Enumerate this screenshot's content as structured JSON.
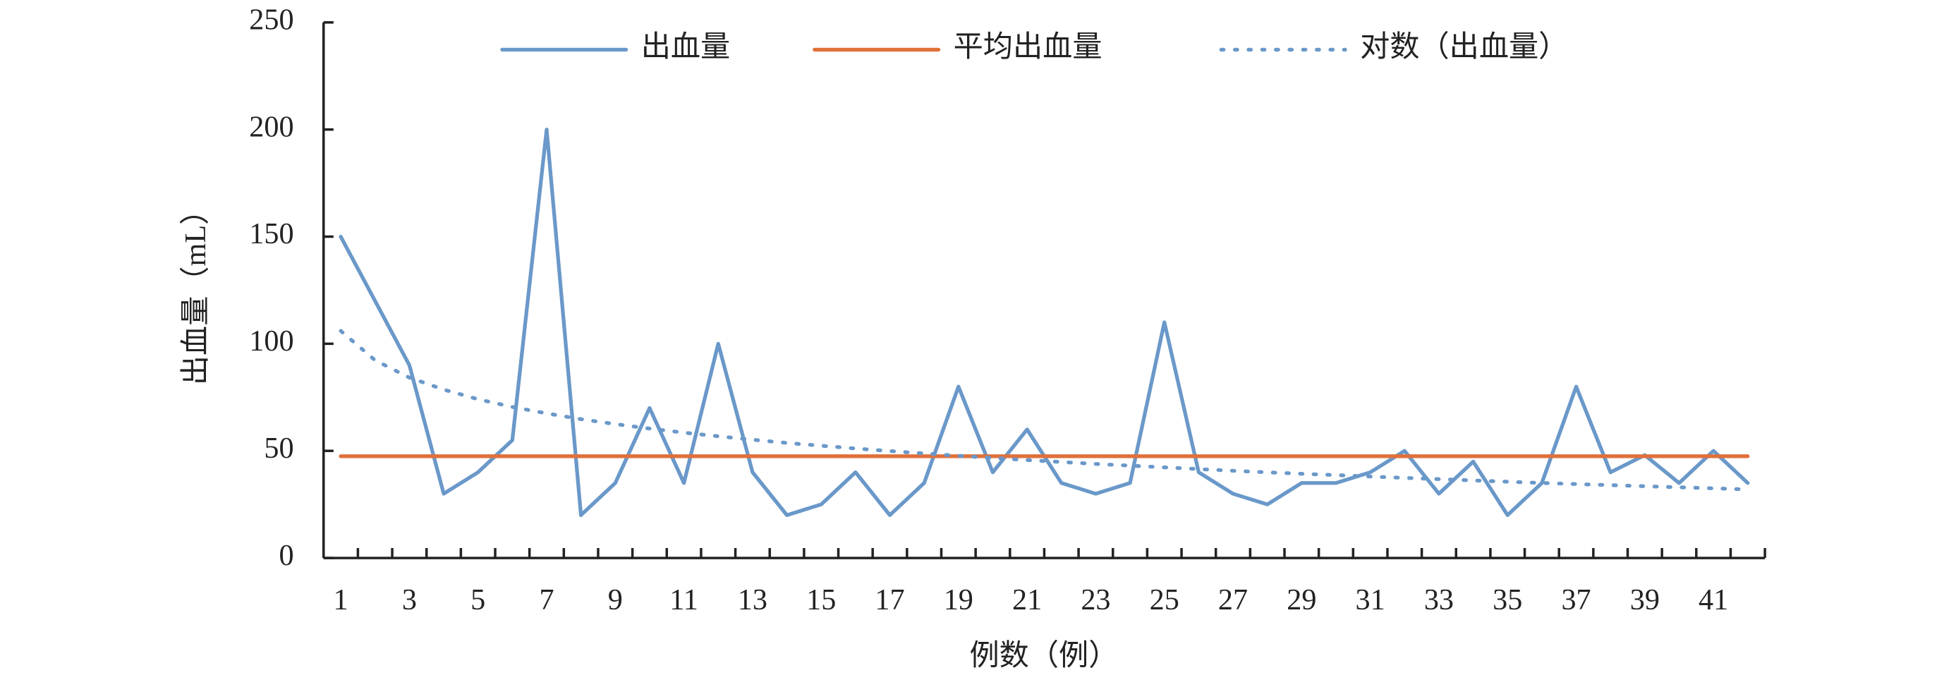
{
  "chart_data": {
    "type": "line",
    "y_label": "出血量（mL）",
    "x_label": "例数（例）",
    "categories": [
      1,
      null,
      3,
      null,
      5,
      null,
      7,
      null,
      9,
      null,
      11,
      null,
      13,
      null,
      15,
      null,
      17,
      null,
      19,
      null,
      21,
      null,
      23,
      null,
      25,
      null,
      27,
      null,
      29,
      null,
      31,
      null,
      33,
      null,
      35,
      null,
      37,
      null,
      39,
      null,
      41,
      null
    ],
    "series": [
      {
        "name": "出血量",
        "color": "#6a98c9",
        "line_style": "solid",
        "values": [
          150,
          120,
          90,
          30,
          40,
          55,
          200,
          20,
          35,
          70,
          35,
          100,
          40,
          20,
          25,
          40,
          20,
          35,
          80,
          40,
          60,
          35,
          30,
          35,
          110,
          40,
          30,
          25,
          35,
          35,
          40,
          50,
          30,
          45,
          20,
          35,
          80,
          40,
          48,
          35,
          50,
          35
        ]
      },
      {
        "name": "平均出血量",
        "color": "#e0703a",
        "line_style": "solid",
        "values": [
          47.5,
          47.5,
          47.5,
          47.5,
          47.5,
          47.5,
          47.5,
          47.5,
          47.5,
          47.5,
          47.5,
          47.5,
          47.5,
          47.5,
          47.5,
          47.5,
          47.5,
          47.5,
          47.5,
          47.5,
          47.5,
          47.5,
          47.5,
          47.5,
          47.5,
          47.5,
          47.5,
          47.5,
          47.5,
          47.5,
          47.5,
          47.5,
          47.5,
          47.5,
          47.5,
          47.5,
          47.5,
          47.5,
          47.5,
          47.5,
          47.5,
          47.5
        ]
      },
      {
        "name": "对数（出血量）",
        "color": "#6a98c9",
        "line_style": "dotted",
        "values": [
          106,
          92.3,
          84.2,
          78.6,
          74.1,
          70.5,
          67.5,
          64.8,
          62.5,
          60.4,
          58.5,
          56.8,
          55.2,
          53.7,
          52.4,
          51.1,
          49.9,
          48.8,
          47.7,
          46.7,
          45.7,
          44.8,
          43.9,
          43.1,
          42.3,
          41.5,
          40.7,
          40.0,
          39.3,
          38.7,
          38.0,
          37.4,
          36.8,
          36.2,
          35.6,
          35.0,
          34.5,
          34.0,
          33.5,
          33.0,
          32.5,
          32.0
        ]
      }
    ],
    "ylim": [
      0,
      250
    ],
    "yticks": [
      0,
      50,
      100,
      150,
      200,
      250
    ],
    "grid": false,
    "legend": "top"
  }
}
